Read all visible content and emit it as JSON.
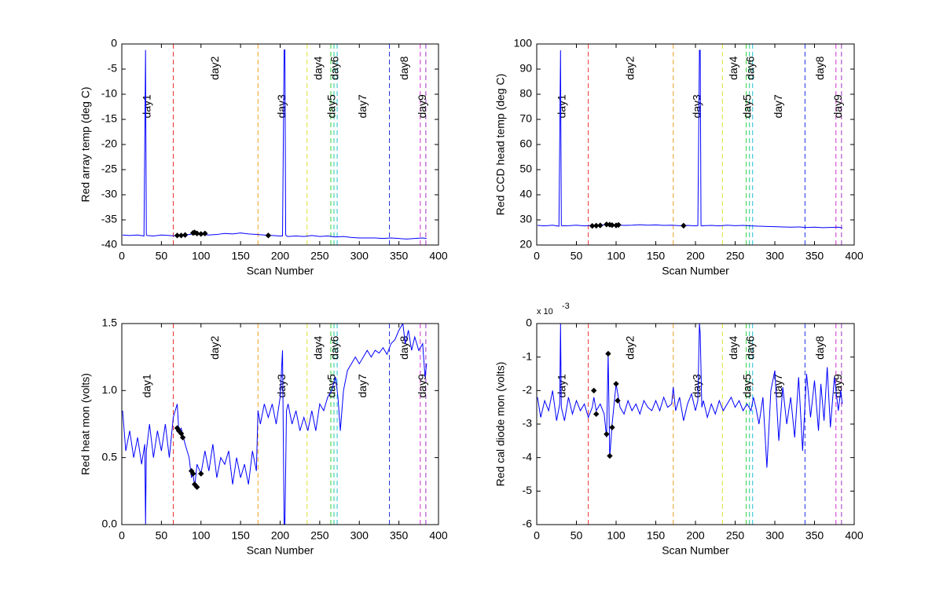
{
  "day_lines": {
    "x": [
      65,
      172,
      234,
      264,
      268,
      272,
      338,
      377,
      384
    ],
    "colors": [
      "#e8302c",
      "#f0a020",
      "#e0e030",
      "#30d030",
      "#20d090",
      "#20c0d8",
      "#2030e0",
      "#d030d0",
      "#a030c0"
    ],
    "labels": [
      "day1",
      "day2",
      "day3",
      "day4",
      "day5",
      "day6",
      "day7",
      "day8",
      "day9"
    ]
  },
  "chart_data": [
    {
      "type": "line",
      "xlabel": "Scan Number",
      "ylabel": "Red array temp  (deg C)",
      "xlim": [
        0,
        400
      ],
      "xticks": [
        0,
        50,
        100,
        150,
        200,
        250,
        300,
        350,
        400
      ],
      "ylim": [
        -40,
        0
      ],
      "yticks": [
        -40,
        -35,
        -30,
        -25,
        -20,
        -15,
        -10,
        -5,
        0
      ],
      "series": [
        {
          "color": "#0000ff",
          "x": [
            1,
            10,
            20,
            28,
            29,
            30,
            31,
            32,
            40,
            50,
            60,
            70,
            80,
            90,
            100,
            110,
            120,
            130,
            140,
            150,
            160,
            170,
            180,
            190,
            200,
            203,
            204,
            205,
            206,
            207,
            208,
            210,
            220,
            230,
            240,
            250,
            260,
            270,
            280,
            290,
            300,
            310,
            320,
            330,
            340,
            350,
            360,
            370,
            380,
            385
          ],
          "values": [
            -38,
            -38.1,
            -38,
            -38.2,
            -19.5,
            -1.2,
            -38,
            -38.1,
            -38.2,
            -38,
            -38.1,
            -38.2,
            -38,
            -37.8,
            -37.9,
            -38,
            -37.9,
            -37.7,
            -37.8,
            -37.6,
            -37.8,
            -37.9,
            -38,
            -38.1,
            -38.2,
            -38.2,
            -19.8,
            -1.2,
            -1.2,
            -38,
            -38.2,
            -38.3,
            -38.2,
            -38.3,
            -38.1,
            -38.3,
            -38.2,
            -38.4,
            -38.3,
            -38.5,
            -38.6,
            -38.6,
            -38.6,
            -38.7,
            -38.6,
            -38.7,
            -38.8,
            -38.7,
            -38.6,
            -38.7
          ]
        }
      ],
      "markers": {
        "color": "#000000",
        "x": [
          70,
          75,
          80,
          90,
          92,
          95,
          100,
          105,
          185
        ],
        "values": [
          -38.1,
          -38.1,
          -38,
          -37.6,
          -37.5,
          -37.7,
          -37.8,
          -37.7,
          -38.1
        ]
      }
    },
    {
      "type": "line",
      "xlabel": "Scan Number",
      "ylabel": "Red CCD head temp (deg C)",
      "xlim": [
        0,
        400
      ],
      "xticks": [
        0,
        50,
        100,
        150,
        200,
        250,
        300,
        350,
        400
      ],
      "ylim": [
        20,
        100
      ],
      "yticks": [
        20,
        30,
        40,
        50,
        60,
        70,
        80,
        90,
        100
      ],
      "series": [
        {
          "color": "#0000ff",
          "x": [
            1,
            10,
            20,
            28,
            29,
            30,
            31,
            32,
            40,
            50,
            60,
            70,
            80,
            90,
            100,
            110,
            120,
            130,
            140,
            150,
            160,
            170,
            180,
            190,
            200,
            203,
            204,
            205,
            206,
            207,
            208,
            210,
            220,
            230,
            240,
            250,
            260,
            270,
            280,
            290,
            300,
            310,
            320,
            330,
            340,
            350,
            360,
            370,
            380,
            385
          ],
          "values": [
            27.8,
            27.6,
            27.9,
            27.5,
            62,
            97.5,
            27.8,
            27.6,
            27.7,
            27.9,
            27.6,
            27.8,
            27.9,
            28.2,
            28,
            27.8,
            27.9,
            28.1,
            27.9,
            28,
            27.8,
            27.9,
            27.7,
            27.8,
            27.6,
            27.7,
            62,
            97.5,
            97.5,
            27.8,
            27.6,
            27.7,
            27.8,
            27.6,
            27.9,
            27.7,
            27.8,
            27.6,
            27.5,
            27.4,
            27.3,
            27.2,
            27.1,
            27.2,
            27.0,
            27.1,
            26.9,
            27,
            27.1,
            26.8
          ]
        }
      ],
      "markers": {
        "color": "#000000",
        "x": [
          70,
          75,
          80,
          88,
          92,
          95,
          100,
          103,
          185
        ],
        "values": [
          27.6,
          27.7,
          27.8,
          28.2,
          28.1,
          27.9,
          27.8,
          28,
          27.7
        ]
      }
    },
    {
      "type": "line",
      "xlabel": "Scan Number",
      "ylabel": "Red heat mon (volts)",
      "xlim": [
        0,
        400
      ],
      "xticks": [
        0,
        50,
        100,
        150,
        200,
        250,
        300,
        350,
        400
      ],
      "ylim": [
        0,
        1.5
      ],
      "yticks": [
        {
          "value": 0,
          "label": "0.0"
        },
        0.5,
        {
          "value": 1,
          "label": "1.0"
        },
        1.5
      ],
      "series": [
        {
          "color": "#0000ff",
          "x": [
            1,
            5,
            10,
            15,
            20,
            25,
            29,
            30,
            31,
            35,
            40,
            45,
            50,
            55,
            60,
            65,
            70,
            72,
            75,
            80,
            85,
            88,
            90,
            92,
            95,
            100,
            105,
            110,
            115,
            120,
            125,
            130,
            135,
            140,
            145,
            150,
            155,
            160,
            165,
            170,
            172,
            175,
            180,
            185,
            190,
            195,
            200,
            203,
            205,
            206,
            208,
            210,
            215,
            220,
            225,
            230,
            235,
            240,
            245,
            250,
            255,
            260,
            265,
            270,
            273,
            276,
            280,
            285,
            290,
            295,
            300,
            305,
            310,
            315,
            320,
            325,
            330,
            335,
            340,
            345,
            350,
            355,
            358,
            362,
            366,
            370,
            375,
            380,
            383,
            385
          ],
          "values": [
            0.85,
            0.55,
            0.7,
            0.5,
            0.65,
            0.45,
            0.6,
            0.0,
            0.55,
            0.75,
            0.5,
            0.7,
            0.55,
            0.75,
            0.5,
            0.8,
            0.9,
            0.7,
            0.72,
            0.6,
            0.5,
            0.35,
            0.38,
            0.28,
            0.45,
            0.38,
            0.55,
            0.4,
            0.6,
            0.35,
            0.5,
            0.45,
            0.55,
            0.3,
            0.5,
            0.35,
            0.45,
            0.3,
            0.55,
            0.4,
            0.85,
            0.75,
            0.9,
            0.8,
            0.9,
            0.75,
            0.95,
            1.3,
            0.0,
            0.0,
            0.85,
            0.9,
            0.75,
            0.85,
            0.7,
            0.8,
            0.7,
            0.85,
            0.7,
            0.9,
            0.85,
            0.95,
            1.0,
            1.1,
            0.95,
            0.7,
            1.0,
            1.15,
            1.2,
            1.25,
            1.2,
            1.25,
            1.3,
            1.25,
            1.3,
            1.28,
            1.32,
            1.27,
            1.35,
            1.38,
            1.45,
            1.5,
            1.35,
            1.45,
            1.3,
            1.4,
            1.3,
            1.35,
            1.1,
            1.2
          ]
        }
      ],
      "markers": {
        "color": "#000000",
        "x": [
          70,
          72,
          75,
          77,
          88,
          90,
          92,
          95,
          100
        ],
        "values": [
          0.72,
          0.7,
          0.68,
          0.65,
          0.4,
          0.38,
          0.3,
          0.28,
          0.38
        ]
      }
    },
    {
      "type": "line",
      "xlabel": "Scan Number",
      "ylabel": "Red cal diode mon (volts)",
      "y_exponent_base": "x 10",
      "y_exponent": "-3",
      "xlim": [
        0,
        400
      ],
      "xticks": [
        0,
        50,
        100,
        150,
        200,
        250,
        300,
        350,
        400
      ],
      "ylim": [
        -6,
        0
      ],
      "yticks": [
        -6,
        -5,
        -4,
        -3,
        -2,
        -1,
        0
      ],
      "series": [
        {
          "color": "#0000ff",
          "x": [
            1,
            5,
            10,
            15,
            20,
            25,
            29,
            30,
            31,
            35,
            40,
            45,
            50,
            55,
            60,
            65,
            70,
            72,
            75,
            80,
            85,
            88,
            90,
            92,
            95,
            100,
            105,
            110,
            115,
            120,
            125,
            130,
            135,
            140,
            145,
            150,
            155,
            160,
            165,
            170,
            172,
            175,
            180,
            185,
            190,
            195,
            200,
            203,
            205,
            206,
            208,
            210,
            215,
            220,
            225,
            230,
            235,
            240,
            245,
            250,
            255,
            260,
            265,
            270,
            273,
            276,
            280,
            285,
            290,
            295,
            300,
            305,
            310,
            315,
            320,
            325,
            330,
            335,
            340,
            345,
            350,
            355,
            358,
            362,
            366,
            370,
            375,
            380,
            383,
            385
          ],
          "values": [
            -2.2,
            -2.8,
            -2.3,
            -2.6,
            -2.0,
            -2.9,
            -2.4,
            0.0,
            -2.5,
            -2.9,
            -2.2,
            -2.7,
            -2.3,
            -2.6,
            -2.4,
            -2.8,
            -2.5,
            -2.2,
            -2.6,
            -2.4,
            -2.7,
            -3.4,
            -0.9,
            -4.0,
            -3.0,
            -1.8,
            -2.5,
            -2.7,
            -2.3,
            -2.6,
            -2.4,
            -2.7,
            -2.3,
            -2.5,
            -2.6,
            -2.3,
            -2.6,
            -2.2,
            -2.5,
            -2.4,
            -1.9,
            -2.6,
            -2.2,
            -2.9,
            -2.4,
            -2.1,
            -2.6,
            -2.3,
            0.0,
            -0.3,
            -2.5,
            -2.3,
            -2.8,
            -2.4,
            -2.7,
            -2.3,
            -2.6,
            -2.4,
            -2.2,
            -2.5,
            -2.3,
            -2.6,
            -2.4,
            -2.6,
            -2.2,
            -2.5,
            -3.0,
            -2.2,
            -4.3,
            -2.0,
            -1.4,
            -3.5,
            -1.9,
            -3.0,
            -2.2,
            -3.4,
            -1.6,
            -3.8,
            -1.5,
            -2.8,
            -1.7,
            -3.2,
            -1.8,
            -2.9,
            -1.3,
            -3.1,
            -1.6,
            -2.6,
            -2.0,
            -2.4
          ]
        }
      ],
      "markers": {
        "color": "#000000",
        "x": [
          72,
          75,
          88,
          90,
          92,
          95,
          100,
          102
        ],
        "values": [
          -2.0,
          -2.7,
          -3.3,
          -0.9,
          -3.95,
          -3.1,
          -1.8,
          -2.3
        ]
      }
    }
  ]
}
